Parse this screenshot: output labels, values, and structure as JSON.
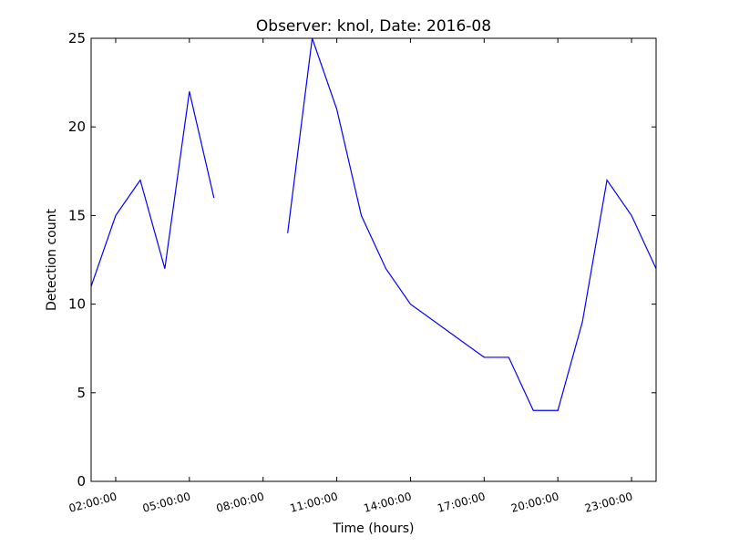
{
  "chart_data": {
    "type": "line",
    "title": "Observer: knol, Date: 2016-08",
    "xlabel": "Time (hours)",
    "ylabel": "Detection count",
    "xlim_hours": [
      1,
      24
    ],
    "ylim": [
      0,
      25
    ],
    "x_ticks": [
      {
        "hour": 2,
        "label": "02:00:00"
      },
      {
        "hour": 5,
        "label": "05:00:00"
      },
      {
        "hour": 8,
        "label": "08:00:00"
      },
      {
        "hour": 11,
        "label": "11:00:00"
      },
      {
        "hour": 14,
        "label": "14:00:00"
      },
      {
        "hour": 17,
        "label": "17:00:00"
      },
      {
        "hour": 20,
        "label": "20:00:00"
      },
      {
        "hour": 23,
        "label": "23:00:00"
      }
    ],
    "y_ticks": [
      0,
      5,
      10,
      15,
      20,
      25
    ],
    "grid": false,
    "line_color": "#0000ff",
    "series": [
      {
        "segments": [
          [
            {
              "hour": 1,
              "count": 11
            },
            {
              "hour": 2,
              "count": 15
            },
            {
              "hour": 3,
              "count": 17
            },
            {
              "hour": 4,
              "count": 12
            },
            {
              "hour": 5,
              "count": 22
            },
            {
              "hour": 6,
              "count": 16
            }
          ],
          [
            {
              "hour": 9,
              "count": 14
            },
            {
              "hour": 10,
              "count": 25
            },
            {
              "hour": 11,
              "count": 21
            },
            {
              "hour": 12,
              "count": 15
            },
            {
              "hour": 13,
              "count": 12
            },
            {
              "hour": 14,
              "count": 10
            },
            {
              "hour": 15,
              "count": 9
            },
            {
              "hour": 16,
              "count": 8
            },
            {
              "hour": 17,
              "count": 7
            },
            {
              "hour": 18,
              "count": 7
            },
            {
              "hour": 19,
              "count": 4
            },
            {
              "hour": 20,
              "count": 4
            },
            {
              "hour": 21,
              "count": 9
            },
            {
              "hour": 22,
              "count": 17
            },
            {
              "hour": 23,
              "count": 15
            },
            {
              "hour": 24,
              "count": 12
            }
          ]
        ]
      }
    ]
  }
}
